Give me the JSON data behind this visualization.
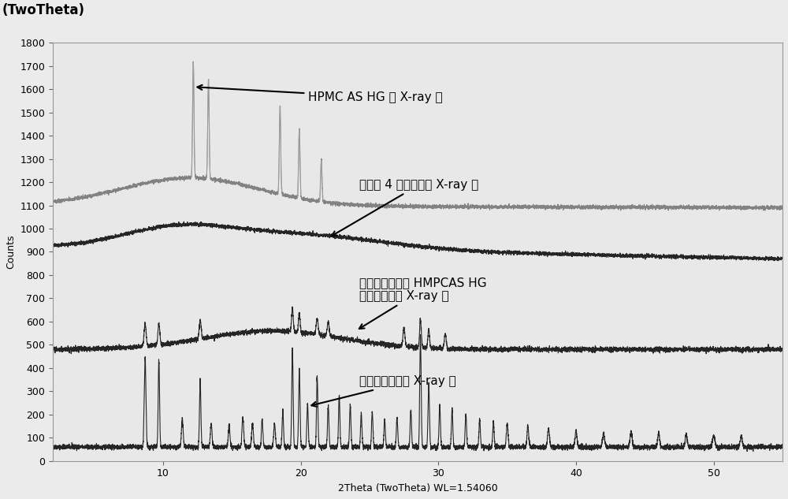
{
  "title": "(TwoTheta)",
  "xlabel": "2Theta (TwoTheta) WL=1.54060",
  "ylabel": "Counts",
  "xlim": [
    2,
    55
  ],
  "ylim": [
    0,
    1800
  ],
  "yticks": [
    0,
    100,
    200,
    300,
    400,
    500,
    600,
    700,
    800,
    900,
    1000,
    1100,
    1200,
    1300,
    1400,
    1500,
    1600,
    1700,
    1800
  ],
  "xticks": [
    10,
    20,
    30,
    40,
    50
  ],
  "background_color": "#f0f0f0",
  "curve_colors": [
    "#1a1a1a",
    "#1a1a1a",
    "#1a1a1a",
    "#888888"
  ],
  "ann1_text": "HPMC AS HG 的 X-ray 图",
  "ann2_text": "实验例 4 固体分散的 X-ray 图",
  "ann3_text": "醛酸阿比特龙与 HMPCAS HG\n物理混合物的 X-ray 图",
  "ann4_text": "醛酸阿比特龙的 X-ray 图"
}
